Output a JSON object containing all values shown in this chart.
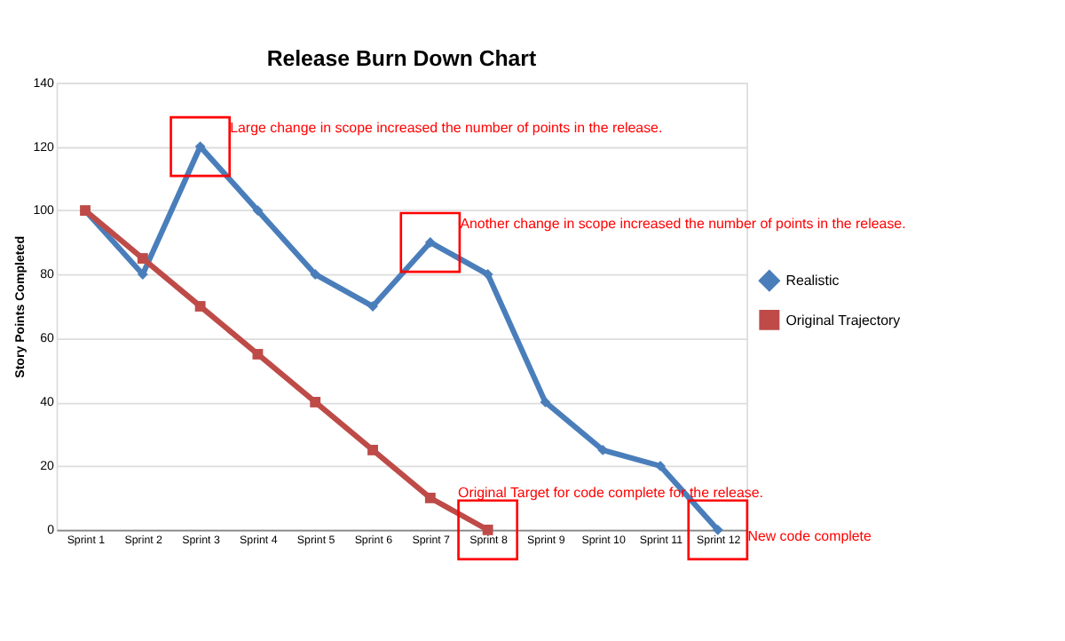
{
  "chart_data": {
    "type": "line",
    "title": "Release Burn Down Chart",
    "ylabel": "Story Points Completed",
    "categories": [
      "Sprint 1",
      "Sprint 2",
      "Sprint 3",
      "Sprint 4",
      "Sprint 5",
      "Sprint 6",
      "Sprint 7",
      "Sprint 8",
      "Sprint 9",
      "Sprint 10",
      "Sprint 11",
      "Sprint 12"
    ],
    "series": [
      {
        "name": "Realistic",
        "color": "#4a7ebb",
        "marker": "diamond",
        "values": [
          100,
          80,
          120,
          100,
          80,
          70,
          90,
          80,
          40,
          25,
          20,
          0
        ]
      },
      {
        "name": "Original Trajectory",
        "color": "#be4b48",
        "marker": "square",
        "values": [
          100,
          85,
          70,
          55,
          40,
          25,
          10,
          0,
          null,
          null,
          null,
          null
        ]
      }
    ],
    "ylim": [
      0,
      140
    ],
    "yticks": [
      0,
      20,
      40,
      60,
      80,
      100,
      120,
      140
    ],
    "grid": "y",
    "legend": "right",
    "annotations": [
      {
        "text": "Large change in scope increased the number of points in the release.",
        "x": "Sprint 3",
        "y": 120
      },
      {
        "text": "Another change in scope increased the number of points in the release.",
        "x": "Sprint 7",
        "y": 90
      },
      {
        "text": "Original Target for code complete for the release.",
        "x": "Sprint 8",
        "y": 0
      },
      {
        "text": "New code complete",
        "x": "Sprint 12",
        "y": 0
      }
    ]
  }
}
